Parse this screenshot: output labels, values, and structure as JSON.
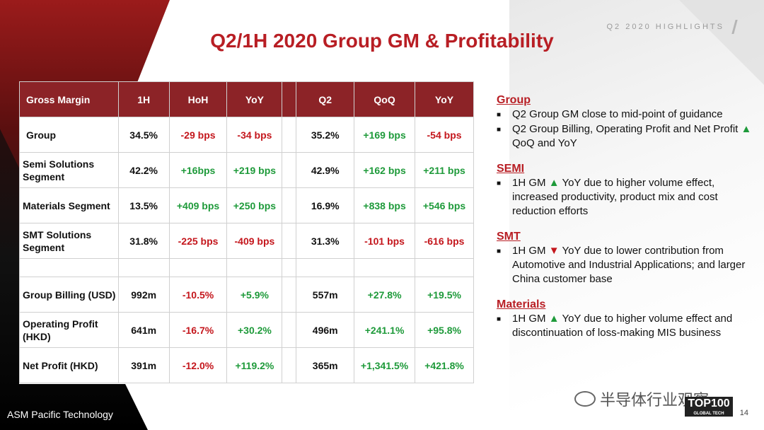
{
  "header": {
    "tag": "Q2 2020 HIGHLIGHTS",
    "title": "Q2/1H 2020 Group GM & Profitability"
  },
  "table": {
    "headers": [
      "Gross Margin",
      "1H",
      "HoH",
      "YoY",
      "",
      "Q2",
      "QoQ",
      "YoY"
    ],
    "rows": [
      {
        "label": "Group",
        "h1": "34.5%",
        "hoh": "-29 bps",
        "yoy1": "-34 bps",
        "q2": "35.2%",
        "qoq": "+169 bps",
        "yoy2": "-54 bps"
      },
      {
        "label": "Semi Solutions Segment",
        "h1": "42.2%",
        "hoh": "+16bps",
        "yoy1": "+219 bps",
        "q2": "42.9%",
        "qoq": "+162 bps",
        "yoy2": "+211 bps"
      },
      {
        "label": "Materials Segment",
        "h1": "13.5%",
        "hoh": "+409 bps",
        "yoy1": "+250 bps",
        "q2": "16.9%",
        "qoq": "+838 bps",
        "yoy2": "+546 bps"
      },
      {
        "label": "SMT Solutions Segment",
        "h1": "31.8%",
        "hoh": "-225 bps",
        "yoy1": "-409 bps",
        "q2": "31.3%",
        "qoq": "-101 bps",
        "yoy2": "-616 bps"
      },
      {
        "label": "Group Billing (USD)",
        "h1": "992m",
        "hoh": "-10.5%",
        "yoy1": "+5.9%",
        "q2": "557m",
        "qoq": "+27.8%",
        "yoy2": "+19.5%"
      },
      {
        "label": "Operating Profit (HKD)",
        "h1": "641m",
        "hoh": "-16.7%",
        "yoy1": "+30.2%",
        "q2": "496m",
        "qoq": "+241.1%",
        "yoy2": "+95.8%"
      },
      {
        "label": "Net Profit (HKD)",
        "h1": "391m",
        "hoh": "-12.0%",
        "yoy1": "+119.2%",
        "q2": "365m",
        "qoq": "+1,341.5%",
        "yoy2": "+421.8%"
      }
    ]
  },
  "notes": [
    {
      "heading": "Group",
      "bullets": [
        {
          "text": "Q2 Group GM close to mid-point of guidance"
        },
        {
          "pre": "Q2 Group Billing, Operating Profit and Net Profit ",
          "arrow": "▲",
          "dir": "up",
          "post": " QoQ and YoY"
        }
      ]
    },
    {
      "heading": "SEMI",
      "bullets": [
        {
          "pre": "1H GM ",
          "arrow": "▲",
          "dir": "up",
          "post": " YoY due to higher volume effect, increased productivity, product mix and cost reduction efforts"
        }
      ]
    },
    {
      "heading": "SMT",
      "bullets": [
        {
          "pre": "1H GM ",
          "arrow": "▼",
          "dir": "down",
          "post": " YoY due to lower contribution from Automotive and Industrial Applications; and larger China customer base"
        }
      ]
    },
    {
      "heading": "Materials",
      "bullets": [
        {
          "pre": "1H GM ",
          "arrow": "▲",
          "dir": "up",
          "post": " YoY due to higher volume effect and discontinuation of loss-making MIS business"
        }
      ]
    }
  ],
  "footer": {
    "logo": "ASM Pacific Technology",
    "watermark": "半导体行业观察",
    "badge": "TOP100",
    "badge_sub": "GLOBAL TECH LEADER",
    "page": "14"
  },
  "colors": {
    "brand_red": "#b81e24",
    "header_fill": "#8c2327",
    "positive": "#1e9a3a",
    "negative": "#c4161c"
  }
}
